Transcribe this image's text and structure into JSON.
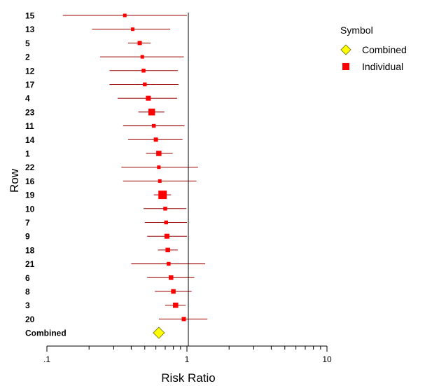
{
  "chart_data": {
    "type": "forest-plot",
    "xlabel": "Risk Ratio",
    "ylabel": "Row",
    "xscale": "log",
    "xlim": [
      0.1,
      10
    ],
    "xticks": [
      {
        "value": 0.1,
        "label": ".1"
      },
      {
        "value": 1,
        "label": "1"
      },
      {
        "value": 10,
        "label": "10"
      }
    ],
    "reference_line": 1,
    "legend": {
      "title": "Symbol",
      "placement": "top-right",
      "entries": [
        {
          "label": "Combined",
          "marker": "diamond",
          "color": "#ffff00"
        },
        {
          "label": "Individual",
          "marker": "square",
          "color": "#ff0000"
        }
      ]
    },
    "colors": {
      "ci_line": "#990000",
      "square": "#ff0000",
      "diamond": "#ffff00"
    },
    "rows": [
      {
        "label": "15",
        "estimate": 0.36,
        "lower": 0.13,
        "upper": 1.0,
        "weight": 1
      },
      {
        "label": "13",
        "estimate": 0.41,
        "lower": 0.21,
        "upper": 0.76,
        "weight": 1
      },
      {
        "label": "5",
        "estimate": 0.46,
        "lower": 0.38,
        "upper": 0.55,
        "weight": 1.2
      },
      {
        "label": "2",
        "estimate": 0.48,
        "lower": 0.24,
        "upper": 0.95,
        "weight": 1
      },
      {
        "label": "12",
        "estimate": 0.49,
        "lower": 0.28,
        "upper": 0.86,
        "weight": 1.1
      },
      {
        "label": "17",
        "estimate": 0.5,
        "lower": 0.28,
        "upper": 0.87,
        "weight": 1.1
      },
      {
        "label": "4",
        "estimate": 0.53,
        "lower": 0.32,
        "upper": 0.85,
        "weight": 1.4
      },
      {
        "label": "23",
        "estimate": 0.56,
        "lower": 0.45,
        "upper": 0.69,
        "weight": 1.9
      },
      {
        "label": "11",
        "estimate": 0.58,
        "lower": 0.35,
        "upper": 0.96,
        "weight": 1.1
      },
      {
        "label": "14",
        "estimate": 0.6,
        "lower": 0.38,
        "upper": 0.93,
        "weight": 1.2
      },
      {
        "label": "1",
        "estimate": 0.63,
        "lower": 0.51,
        "upper": 0.79,
        "weight": 1.5
      },
      {
        "label": "22",
        "estimate": 0.63,
        "lower": 0.34,
        "upper": 1.2,
        "weight": 1
      },
      {
        "label": "16",
        "estimate": 0.64,
        "lower": 0.35,
        "upper": 1.17,
        "weight": 1
      },
      {
        "label": "19",
        "estimate": 0.67,
        "lower": 0.58,
        "upper": 0.77,
        "weight": 2.4
      },
      {
        "label": "10",
        "estimate": 0.7,
        "lower": 0.49,
        "upper": 0.99,
        "weight": 1.1
      },
      {
        "label": "7",
        "estimate": 0.71,
        "lower": 0.5,
        "upper": 1.0,
        "weight": 1.1
      },
      {
        "label": "9",
        "estimate": 0.72,
        "lower": 0.52,
        "upper": 1.0,
        "weight": 1.4
      },
      {
        "label": "18",
        "estimate": 0.73,
        "lower": 0.62,
        "upper": 0.86,
        "weight": 1.3
      },
      {
        "label": "21",
        "estimate": 0.74,
        "lower": 0.4,
        "upper": 1.35,
        "weight": 1.1
      },
      {
        "label": "6",
        "estimate": 0.77,
        "lower": 0.52,
        "upper": 1.13,
        "weight": 1.3
      },
      {
        "label": "8",
        "estimate": 0.8,
        "lower": 0.59,
        "upper": 1.08,
        "weight": 1.3
      },
      {
        "label": "3",
        "estimate": 0.83,
        "lower": 0.7,
        "upper": 0.98,
        "weight": 1.5
      },
      {
        "label": "20",
        "estimate": 0.95,
        "lower": 0.63,
        "upper": 1.4,
        "weight": 1.2
      }
    ],
    "combined": {
      "label": "Combined",
      "estimate": 0.63
    }
  }
}
